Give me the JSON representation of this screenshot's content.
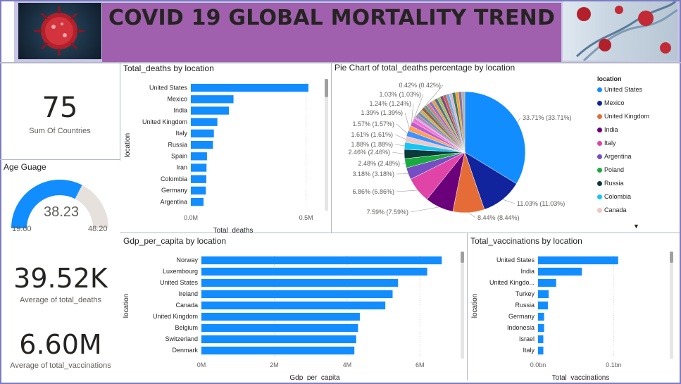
{
  "header": {
    "title": "COVID 19 GLOBAL MORTALITY TREND",
    "virus_image_icon": "virus-image-icon",
    "dna_image_icon": "dna-image-icon"
  },
  "cards": {
    "countries": {
      "value": "75",
      "label": "Sum Of Countries"
    },
    "avg_deaths": {
      "value": "39.52K",
      "label": "Average of total_deaths"
    },
    "avg_vacc": {
      "value": "6.60M",
      "label": "Average of total_vaccinations"
    }
  },
  "gauge": {
    "title": "Age Guage",
    "value": "38.23",
    "min": "19.60",
    "max": "48.20",
    "fraction": 0.651,
    "color": "#118dff",
    "track_color": "#e6e1dc"
  },
  "colors": {
    "bar": "#118dff",
    "header_band": "#a160ad",
    "header_bg": "#c9c6e6"
  },
  "chart_data": [
    {
      "type": "bar",
      "orientation": "horizontal",
      "title": "Total_deaths by location",
      "xlabel": "Total_deaths",
      "ylabel": "location",
      "categories": [
        "United States",
        "Mexico",
        "India",
        "United Kingdom",
        "Italy",
        "Russia",
        "Spain",
        "Iran",
        "Colombia",
        "Germany",
        "Argentina"
      ],
      "values": [
        510000,
        185000,
        165000,
        115000,
        100000,
        96000,
        70000,
        68000,
        67000,
        65000,
        55000
      ],
      "xlim": [
        0,
        550000
      ],
      "xticks": [
        0,
        500000
      ],
      "xtick_labels": [
        "0.0M",
        "0.5M"
      ]
    },
    {
      "type": "pie",
      "title": "Pie Chart of total_deaths percentage by location",
      "legend_title": "location",
      "slices": [
        {
          "label": "United States",
          "value": 33.71,
          "color": "#118dff",
          "text": "33.71% (33.71%)"
        },
        {
          "label": "Mexico",
          "value": 11.03,
          "color": "#12239e",
          "text": "11.03% (11.03%)"
        },
        {
          "label": "United Kingdom",
          "value": 8.44,
          "color": "#e66c37",
          "text": "8.44% (8.44%)"
        },
        {
          "label": "India",
          "value": 7.59,
          "color": "#6b007b",
          "text": "7.59% (7.59%)"
        },
        {
          "label": "Italy",
          "value": 6.86,
          "color": "#e044a7",
          "text": "6.86% (6.86%)"
        },
        {
          "label": "Argentina",
          "value": 3.18,
          "color": "#744ec2",
          "text": "3.18% (3.18%)"
        },
        {
          "label": "Poland",
          "value": 2.48,
          "color": "#1aab40",
          "text": "2.48% (2.48%)"
        },
        {
          "label": "Russia",
          "value": 2.46,
          "color": "#0b3b3b",
          "text": "2.46% (2.46%)"
        },
        {
          "label": "Colombia",
          "value": 1.88,
          "color": "#15c6f4",
          "text": "1.88% (1.88%)"
        },
        {
          "label": "Canada",
          "value": 1.61,
          "color": "#f0c6c6",
          "text": "1.61% (1.61%)"
        },
        {
          "label": "",
          "value": 1.57,
          "color": "#4092ff",
          "text": "1.57% (1.57%)"
        },
        {
          "label": "",
          "value": 1.39,
          "color": "#ffa058",
          "text": "1.39% (1.39%)"
        },
        {
          "label": "",
          "value": 1.24,
          "color": "#be5dc9",
          "text": "1.24% (1.24%)"
        },
        {
          "label": "",
          "value": 1.03,
          "color": "#f472d0",
          "text": "1.03% (1.03%)"
        },
        {
          "label": "",
          "value": 0.42,
          "color": "#b5a1ff",
          "text": "0.42% (0.42%)"
        },
        {
          "label": "",
          "value": 15.1,
          "color": "mixed",
          "text": ""
        }
      ],
      "legend": [
        "United States",
        "Mexico",
        "United Kingdom",
        "India",
        "Italy",
        "Argentina",
        "Poland",
        "Russia",
        "Colombia",
        "Canada"
      ],
      "legend_colors": [
        "#118dff",
        "#12239e",
        "#e66c37",
        "#6b007b",
        "#e044a7",
        "#744ec2",
        "#1aab40",
        "#0b3b3b",
        "#15c6f4",
        "#f0c6c6"
      ],
      "more_icon": "caret-down-icon"
    },
    {
      "type": "bar",
      "orientation": "horizontal",
      "title": "Gdp_per_capita by location",
      "xlabel": "Gdp_per_capita",
      "ylabel": "location",
      "categories": [
        "Norway",
        "Luxembourg",
        "United States",
        "Ireland",
        "Canada",
        "United Kingdom",
        "Belgium",
        "Switzerland",
        "Denmark"
      ],
      "values": [
        6600000,
        6200000,
        5400000,
        5250000,
        5050000,
        4350000,
        4300000,
        4250000,
        4200000
      ],
      "xlim": [
        0,
        7000000
      ],
      "xticks": [
        0,
        2000000,
        4000000,
        6000000
      ],
      "xtick_labels": [
        "0M",
        "2M",
        "4M",
        "6M"
      ]
    },
    {
      "type": "bar",
      "orientation": "horizontal",
      "title": "Total_vaccinations by location",
      "xlabel": "Total_vaccinations",
      "ylabel": "location",
      "categories": [
        "United States",
        "India",
        "United Kingdo...",
        "Turkey",
        "Russia",
        "Germany",
        "Indonesia",
        "Israel",
        "Italy"
      ],
      "values": [
        0.106,
        0.058,
        0.024,
        0.014,
        0.013,
        0.008,
        0.008,
        0.007,
        0.007
      ],
      "xlim": [
        0,
        0.15
      ],
      "xticks": [
        0,
        0.1
      ],
      "xtick_labels": [
        "0.0bn",
        "0.1bn"
      ]
    }
  ]
}
